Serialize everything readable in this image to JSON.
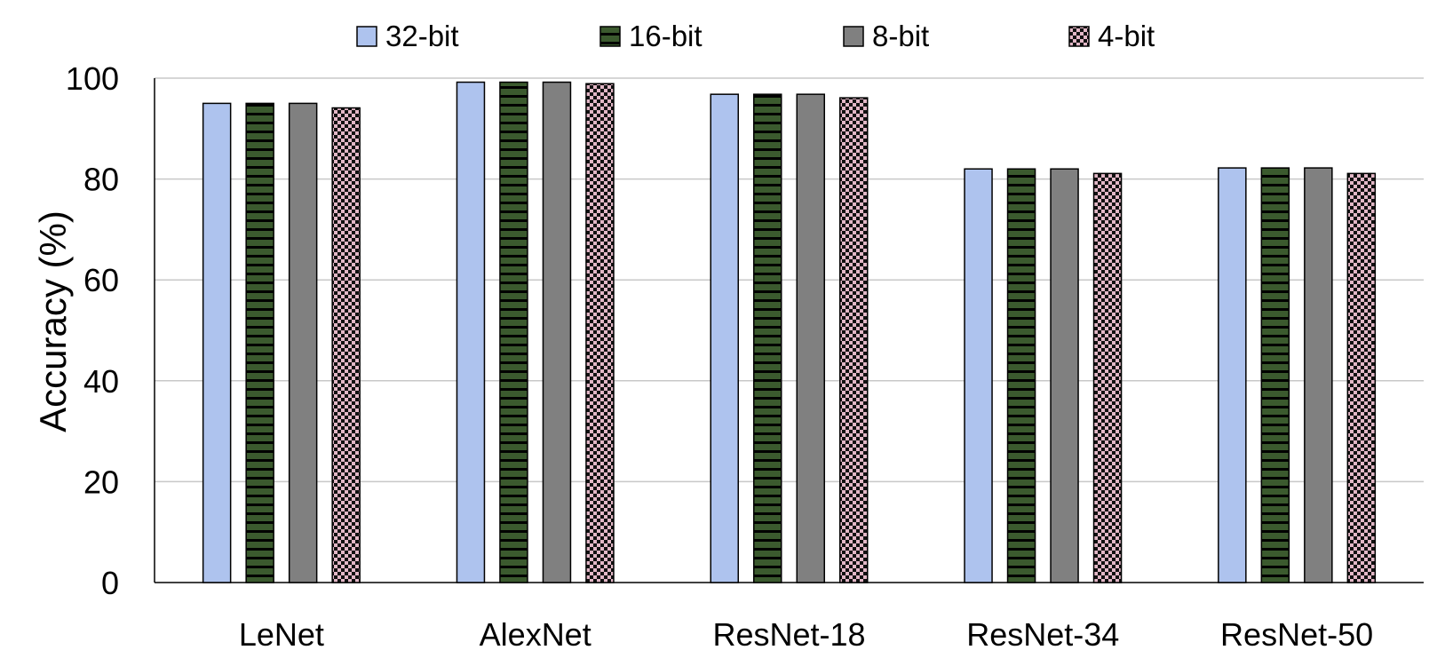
{
  "chart_data": {
    "type": "bar",
    "title": "",
    "xlabel": "",
    "ylabel": "Accuracy (%)",
    "ylim": [
      0,
      100
    ],
    "yticks": [
      0,
      20,
      40,
      60,
      80,
      100
    ],
    "grid": "horizontal",
    "legend_position": "top",
    "categories": [
      "LeNet",
      "AlexNet",
      "ResNet-18",
      "ResNet-34",
      "ResNet-50"
    ],
    "series": [
      {
        "name": "32-bit",
        "color": "#aec3ee",
        "pattern": "solid",
        "values": [
          95.0,
          99.2,
          96.8,
          82.0,
          82.2
        ]
      },
      {
        "name": "16-bit",
        "color": "#3b5a2e",
        "pattern": "horizontal-stripes",
        "values": [
          95.0,
          99.2,
          96.8,
          82.0,
          82.2
        ]
      },
      {
        "name": "8-bit",
        "color": "#808080",
        "pattern": "solid",
        "values": [
          95.0,
          99.2,
          96.8,
          82.0,
          82.2
        ]
      },
      {
        "name": "4-bit",
        "color": "#e2b7c6",
        "pattern": "checker",
        "values": [
          94.1,
          98.9,
          96.1,
          81.1,
          81.1
        ]
      }
    ]
  }
}
